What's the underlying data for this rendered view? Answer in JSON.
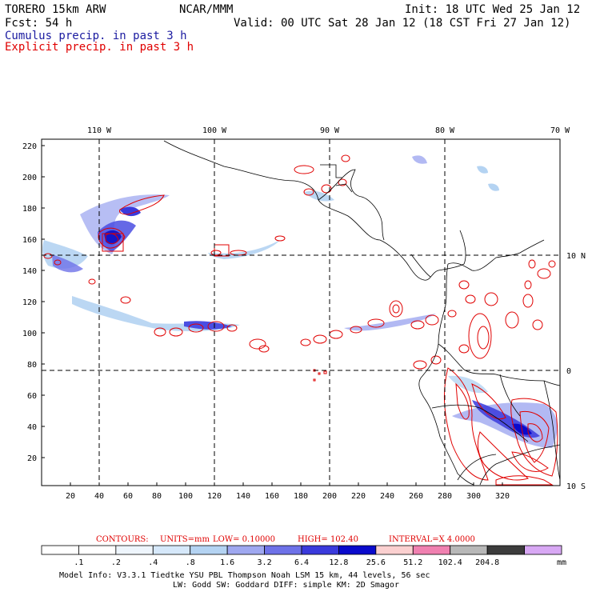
{
  "header": {
    "model": "TORERO  15km ARW",
    "center": "NCAR/MMM",
    "init": "Init: 18 UTC Wed 25 Jan 12",
    "fcst": "Fcst:   54 h",
    "valid": "Valid: 00 UTC Sat 28 Jan 12 (18 CST Fri 27 Jan 12)",
    "field1": "Cumulus precip. in past 3 h",
    "field2": "Explicit precip. in past 3 h"
  },
  "map": {
    "lon_labels": [
      "110 W",
      "100 W",
      "90 W",
      "80 W",
      "70 W"
    ],
    "lat_labels": [
      "10 N",
      "0",
      "10 S"
    ],
    "y_ticks": [
      "220",
      "200",
      "180",
      "160",
      "140",
      "120",
      "100",
      "80",
      "60",
      "40",
      "20"
    ],
    "x_ticks": [
      "20",
      "40",
      "60",
      "80",
      "100",
      "120",
      "140",
      "160",
      "180",
      "200",
      "220",
      "240",
      "260",
      "280",
      "300",
      "320"
    ]
  },
  "contours": {
    "label": "CONTOURS:",
    "units": "UNITS=mm",
    "low": "LOW= 0.10000",
    "high": "HIGH= 102.40",
    "interval": "INTERVAL=X 4.0000"
  },
  "colorbar": {
    "labels": [
      ".1",
      ".2",
      ".4",
      ".8",
      "1.6",
      "3.2",
      "6.4",
      "12.8",
      "25.6",
      "51.2",
      "102.4",
      "204.8"
    ],
    "unit": "mm",
    "colors": [
      "#ffffff",
      "#ffffff",
      "#eef5fc",
      "#d6e8fa",
      "#b4d3f2",
      "#9fa8f0",
      "#6e72e8",
      "#3a3adc",
      "#0a0acc",
      "#fbd0d0",
      "#f080b0",
      "#b8b8b8",
      "#3c3c3c",
      "#d8a8f4"
    ]
  },
  "footer": {
    "line1": "Model Info: V3.3.1   Tiedtke YSU PBL  Thompson    Noah LSM  15 km,   44 levels,   56 sec",
    "line2": "LW: Godd SW: Goddard DIFF: simple KM: 2D Smagor"
  }
}
